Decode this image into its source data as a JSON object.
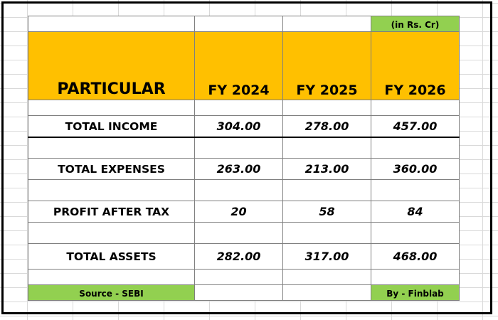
{
  "table": {
    "unit_note": "(in Rs. Cr)",
    "header": {
      "particular": "PARTICULAR",
      "years": [
        "FY 2024",
        "FY 2025",
        "FY 2026"
      ]
    },
    "rows": [
      {
        "label": "TOTAL INCOME",
        "values": [
          "304.00",
          "278.00",
          "457.00"
        ]
      },
      {
        "label": "TOTAL EXPENSES",
        "values": [
          "263.00",
          "213.00",
          "360.00"
        ]
      },
      {
        "label": "PROFIT AFTER TAX",
        "values": [
          "20",
          "58",
          "84"
        ]
      },
      {
        "label": "TOTAL ASSETS",
        "values": [
          "282.00",
          "317.00",
          "468.00"
        ]
      }
    ],
    "footer": {
      "source": "Source - SEBI",
      "credit": "By - Finblab"
    }
  },
  "colors": {
    "header_fill": "#ffc000",
    "accent_fill": "#92d050",
    "frame": "#000000"
  }
}
